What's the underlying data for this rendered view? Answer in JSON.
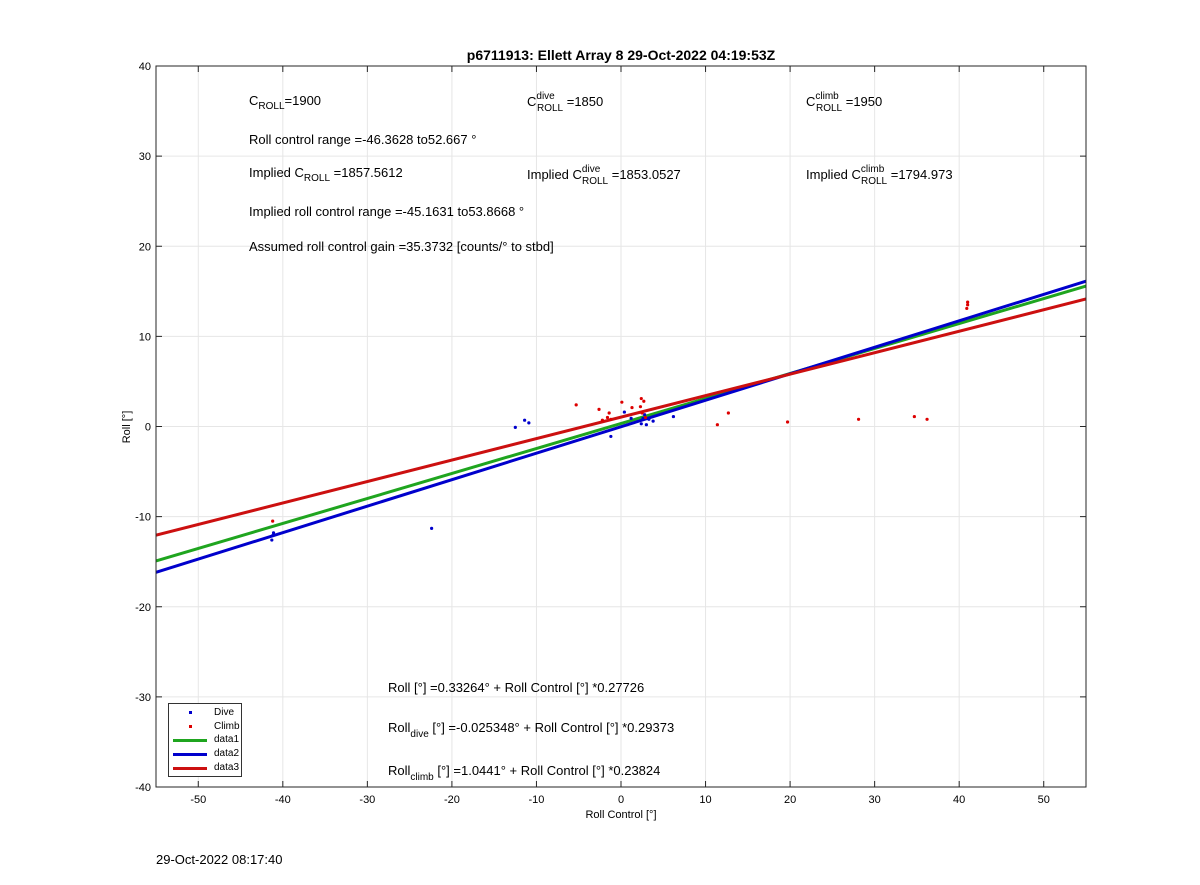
{
  "footer": {
    "timestamp": "29-Oct-2022 08:17:40"
  },
  "legend_items": [
    {
      "label": "Dive",
      "kind": "dot",
      "color": "#0000cc"
    },
    {
      "label": "Climb",
      "kind": "dot",
      "color": "#dd0000"
    },
    {
      "label": "data1",
      "kind": "line",
      "color": "#1fa51f"
    },
    {
      "label": "data2",
      "kind": "line",
      "color": "#0000cc"
    },
    {
      "label": "data3",
      "kind": "line",
      "color": "#cc1010"
    }
  ],
  "annotations": {
    "c_roll": {
      "base": "C",
      "sub": "ROLL",
      "text": "=1900"
    },
    "c_roll_dive": {
      "base": "C",
      "sup": "dive",
      "sub": "ROLL",
      "text": " =1850"
    },
    "c_roll_climb": {
      "base": "C",
      "sup": "climb",
      "sub": "ROLL",
      "text": " =1950"
    },
    "roll_control_range": "Roll control range =-46.3628 to52.667 °",
    "implied_c_roll": {
      "prefix": "Implied C",
      "sub": "ROLL",
      "text": " =1857.5612"
    },
    "implied_c_roll_dive": {
      "prefix": "Implied C",
      "sup": "dive",
      "sub": "ROLL",
      "text": " =1853.0527"
    },
    "implied_c_roll_climb": {
      "prefix": "Implied C",
      "sup": "climb",
      "sub": "ROLL",
      "text": " =1794.973"
    },
    "implied_range": "Implied roll control range =-45.1631 to53.8668 °",
    "gain": "Assumed roll control gain =35.3732 [counts/° to stbd]",
    "fit_all": "Roll [°] =0.33264° + Roll Control [°] *0.27726",
    "fit_dive": {
      "base": "Roll",
      "sub": "dive",
      "text": " [°] =-0.025348° + Roll Control [°] *0.29373"
    },
    "fit_climb": {
      "base": "Roll",
      "sub": "climb",
      "text": " [°] =1.0441° + Roll Control [°] *0.23824"
    }
  },
  "chart_data": {
    "type": "scatter",
    "title": "p6711913: Ellett Array 8 29-Oct-2022 04:19:53Z",
    "xlabel": "Roll Control [°]",
    "ylabel": "Roll [°]",
    "xlim": [
      -55,
      55
    ],
    "ylim": [
      -40,
      40
    ],
    "xticks": [
      -50,
      -40,
      -30,
      -20,
      -10,
      0,
      10,
      20,
      30,
      40,
      50
    ],
    "yticks": [
      -40,
      -30,
      -20,
      -10,
      0,
      10,
      20,
      30,
      40
    ],
    "grid": true,
    "legend_position": "bottom-left",
    "series": [
      {
        "name": "Dive",
        "kind": "points",
        "color": "#0000cc",
        "x": [
          -41.3,
          -41.2,
          -41.1,
          -22.4,
          -12.5,
          -11.4,
          -10.9,
          -1.2,
          0.4,
          1.2,
          2.4,
          2.6,
          2.8,
          3.0,
          3.3,
          3.8,
          6.2
        ],
        "y": [
          -12.6,
          -12.1,
          -11.8,
          -11.3,
          -0.1,
          0.7,
          0.4,
          -1.1,
          1.6,
          0.9,
          0.3,
          0.9,
          1.3,
          0.2,
          0.8,
          0.6,
          1.1
        ]
      },
      {
        "name": "Climb",
        "kind": "points",
        "color": "#dd0000",
        "x": [
          -41.2,
          -5.3,
          -2.6,
          -2.2,
          -1.6,
          -1.4,
          -1.2,
          0.1,
          1.3,
          2.3,
          2.4,
          2.5,
          2.7,
          2.9,
          11.4,
          12.7,
          19.7,
          28.1,
          34.7,
          36.2,
          40.9,
          41.0,
          41.0
        ],
        "y": [
          -10.5,
          2.4,
          1.9,
          0.7,
          1.0,
          1.5,
          0.8,
          2.7,
          2.1,
          2.2,
          3.1,
          1.5,
          2.8,
          1.0,
          0.2,
          1.5,
          0.5,
          0.8,
          1.1,
          0.8,
          13.1,
          13.5,
          13.8
        ]
      },
      {
        "name": "data1",
        "kind": "line",
        "color": "#1fa51f",
        "intercept": 0.33264,
        "slope": 0.27726,
        "width": 3
      },
      {
        "name": "data2",
        "kind": "line",
        "color": "#0000cc",
        "intercept": -0.025348,
        "slope": 0.29373,
        "width": 3
      },
      {
        "name": "data3",
        "kind": "line",
        "color": "#cc1010",
        "intercept": 1.0441,
        "slope": 0.23824,
        "width": 3
      }
    ]
  }
}
